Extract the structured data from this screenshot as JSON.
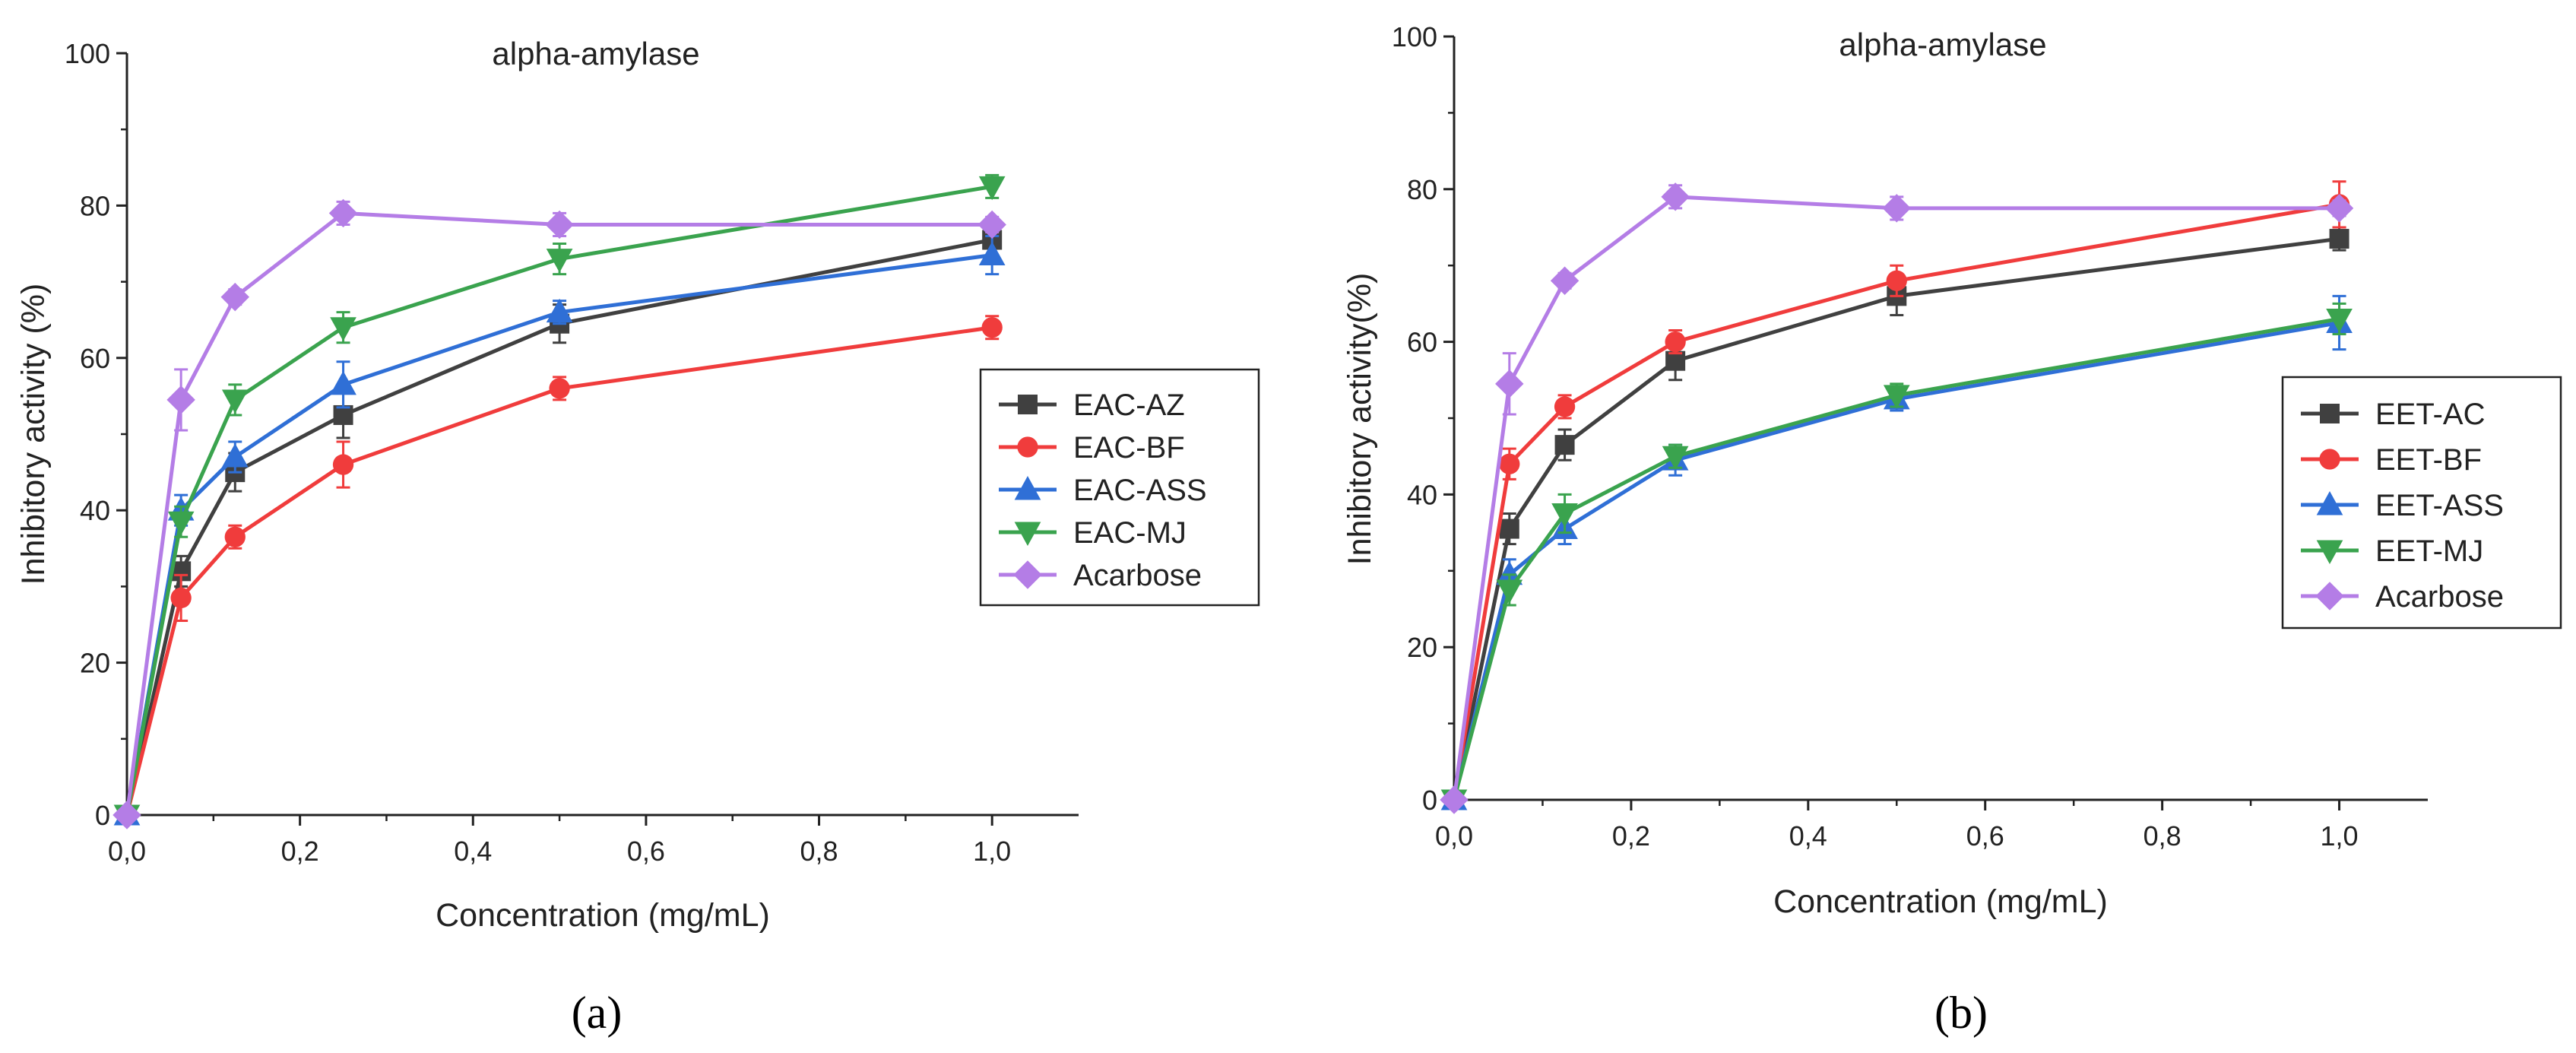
{
  "panels": [
    {
      "label": "(a)",
      "chart_data": {
        "type": "line",
        "title": "alpha-amylase",
        "xlabel": "Concentration (mg/mL)",
        "ylabel": "Inhibitory activity (%)",
        "xlim": [
          0,
          1.1
        ],
        "ylim": [
          0,
          100
        ],
        "xticks": [
          0,
          0.2,
          0.4,
          0.6,
          0.8,
          1.0
        ],
        "xtick_labels": [
          "0,0",
          "0,2",
          "0,4",
          "0,6",
          "0,8",
          "1,0"
        ],
        "yticks": [
          0,
          20,
          40,
          60,
          80,
          100
        ],
        "ytick_labels": [
          "0",
          "20",
          "40",
          "60",
          "80",
          "100"
        ],
        "legend_position": "right",
        "x": [
          0,
          0.0625,
          0.125,
          0.25,
          0.5,
          1.0
        ],
        "series": [
          {
            "name": "EAC-AZ",
            "color": "#404040",
            "marker": "square",
            "values": [
              0,
              32,
              45,
              52.5,
              64.5,
              75.5
            ],
            "errors": [
              0,
              2,
              2.5,
              3,
              2.5,
              2
            ]
          },
          {
            "name": "EAC-BF",
            "color": "#f03c3c",
            "marker": "circle",
            "values": [
              0,
              28.5,
              36.5,
              46,
              56,
              64
            ],
            "errors": [
              0,
              3,
              1.5,
              3,
              1.5,
              1.5
            ]
          },
          {
            "name": "EAC-ASS",
            "color": "#2f6fd6",
            "marker": "triangle-up",
            "values": [
              0,
              40,
              47,
              56.5,
              66,
              73.5
            ],
            "errors": [
              0,
              2,
              2,
              3,
              1.5,
              2.5
            ]
          },
          {
            "name": "EAC-MJ",
            "color": "#3aa34e",
            "marker": "triangle-down",
            "values": [
              0,
              38.5,
              54.5,
              64,
              73,
              82.5
            ],
            "errors": [
              0,
              2,
              2,
              2,
              2,
              1.5
            ]
          },
          {
            "name": "Acarbose",
            "color": "#b47de6",
            "marker": "diamond",
            "values": [
              0,
              54.5,
              68,
              79,
              77.5,
              77.5
            ],
            "errors": [
              0,
              4,
              1,
              1.5,
              1.5,
              1
            ]
          }
        ]
      }
    },
    {
      "label": "(b)",
      "chart_data": {
        "type": "line",
        "title": "alpha-amylase",
        "xlabel": "Concentration (mg/mL)",
        "ylabel": "Inhibitory activity(%)",
        "xlim": [
          0,
          1.1
        ],
        "ylim": [
          0,
          100
        ],
        "xticks": [
          0,
          0.2,
          0.4,
          0.6,
          0.8,
          1.0
        ],
        "xtick_labels": [
          "0,0",
          "0,2",
          "0,4",
          "0,6",
          "0,8",
          "1,0"
        ],
        "yticks": [
          0,
          20,
          40,
          60,
          80,
          100
        ],
        "ytick_labels": [
          "0",
          "20",
          "40",
          "60",
          "80",
          "100"
        ],
        "legend_position": "bottom-right",
        "x": [
          0,
          0.0625,
          0.125,
          0.25,
          0.5,
          1.0
        ],
        "series": [
          {
            "name": "EET-AC",
            "color": "#404040",
            "marker": "square",
            "values": [
              0,
              35.5,
              46.5,
              57.5,
              66,
              73.5
            ],
            "errors": [
              0,
              2,
              2,
              2.5,
              2.5,
              1.5
            ]
          },
          {
            "name": "EET-BF",
            "color": "#f03c3c",
            "marker": "circle",
            "values": [
              0,
              44,
              51.5,
              60,
              68,
              78
            ],
            "errors": [
              0,
              2,
              1.5,
              1.5,
              2,
              3
            ]
          },
          {
            "name": "EET-ASS",
            "color": "#2f6fd6",
            "marker": "triangle-up",
            "values": [
              0,
              29.5,
              35.5,
              44.5,
              52.5,
              62.5
            ],
            "errors": [
              0,
              2,
              2,
              2,
              1.5,
              3.5
            ]
          },
          {
            "name": "EET-MJ",
            "color": "#3aa34e",
            "marker": "triangle-down",
            "values": [
              0,
              27.5,
              37.5,
              45,
              53,
              63
            ],
            "errors": [
              0,
              2,
              2.5,
              1.5,
              1.5,
              2
            ]
          },
          {
            "name": "Acarbose",
            "color": "#b47de6",
            "marker": "diamond",
            "values": [
              0,
              54.5,
              68,
              79,
              77.5,
              77.5
            ],
            "errors": [
              0,
              4,
              1,
              1.5,
              1.5,
              1
            ]
          }
        ]
      }
    }
  ]
}
